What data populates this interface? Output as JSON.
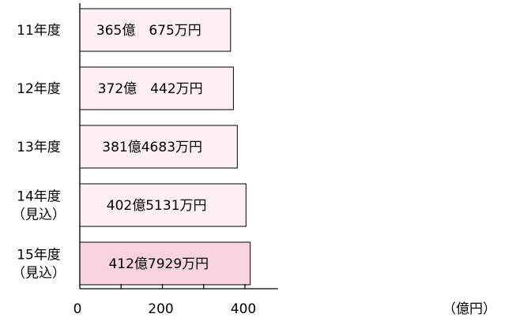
{
  "chart_data": {
    "type": "bar",
    "orientation": "horizontal",
    "categories": [
      [
        "11年度"
      ],
      [
        "12年度"
      ],
      [
        "13年度"
      ],
      [
        "14年度",
        "（見込）"
      ],
      [
        "15年度",
        "（見込）"
      ]
    ],
    "values": [
      365.0675,
      372.0442,
      381.4683,
      402.5131,
      412.7929
    ],
    "data_labels": [
      "365億　675万円",
      "372億　442万円",
      "381億4683万円",
      "402億5131万円",
      "412億7929万円"
    ],
    "xlim": [
      0,
      480
    ],
    "xticks": [
      0,
      200,
      400
    ],
    "xtick_labels": [
      "0",
      "200",
      "400"
    ],
    "x_unit": "（億円）",
    "colors": [
      "#fff0f3",
      "#fff0f3",
      "#fff0f3",
      "#fff0f3",
      "#f9d3df"
    ],
    "grid": false,
    "legend": "none"
  }
}
